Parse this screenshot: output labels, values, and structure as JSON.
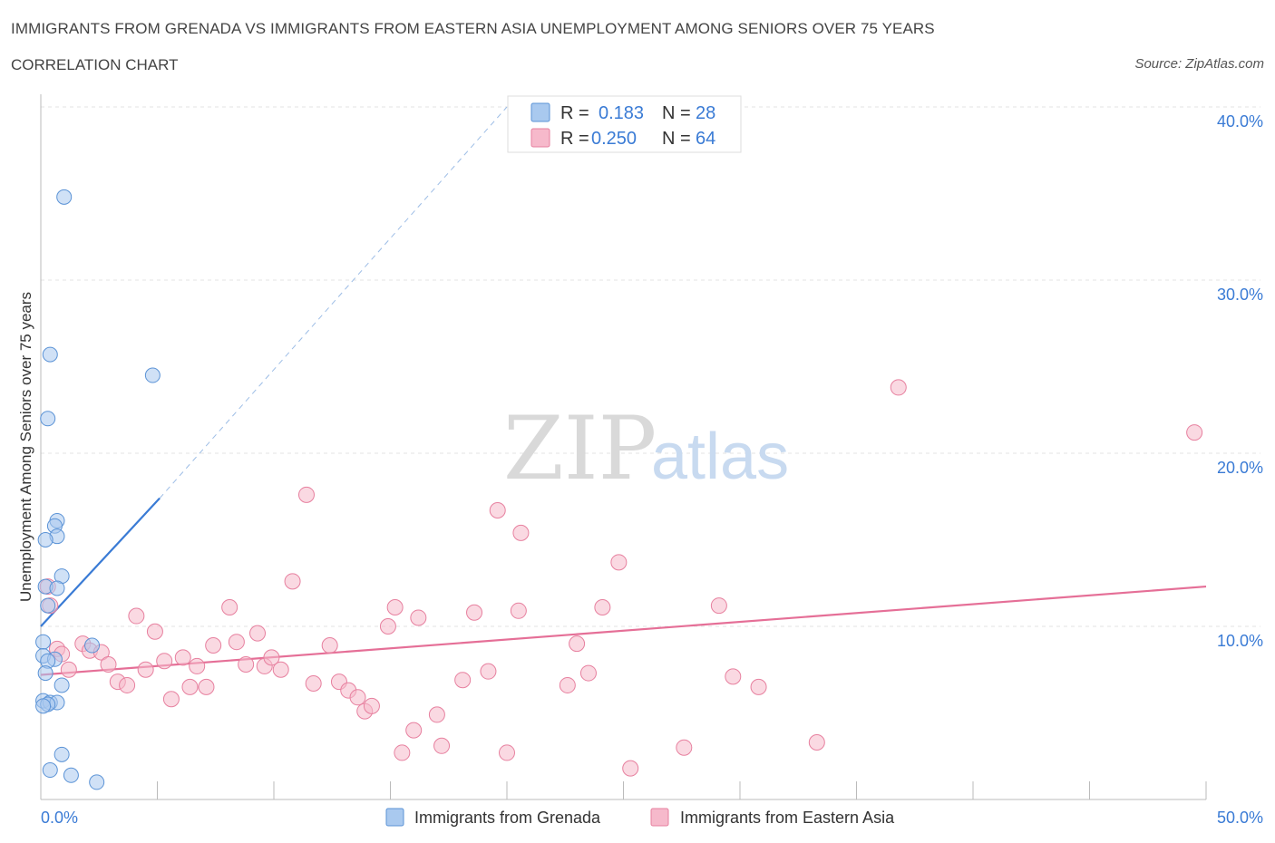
{
  "header": {
    "title": "IMMIGRANTS FROM GRENADA VS IMMIGRANTS FROM EASTERN ASIA UNEMPLOYMENT AMONG SENIORS OVER 75 YEARS",
    "subtitle": "CORRELATION CHART",
    "source": "Source: ZipAtlas.com"
  },
  "watermark": {
    "zip": "ZIP",
    "atlas": "atlas"
  },
  "colors": {
    "grenada_fill": "#a9c9ef",
    "grenada_stroke": "#5b93d6",
    "grenada_line": "#3a7bd5",
    "eastasia_fill": "#f6b9cb",
    "eastasia_stroke": "#e7809f",
    "eastasia_line": "#e56f97",
    "axis_label": "#3a7bd5"
  },
  "legend": {
    "r_label": "R =",
    "n_label": "N =",
    "grenada": {
      "r": "0.183",
      "n": "28",
      "name": "Immigrants from Grenada"
    },
    "eastasia": {
      "r": "0.250",
      "n": "64",
      "name": "Immigrants from Eastern Asia"
    }
  },
  "chart_data": {
    "type": "scatter",
    "xlabel": "",
    "ylabel": "Unemployment Among Seniors over 75 years",
    "xlim": [
      0,
      50
    ],
    "ylim": [
      0,
      40
    ],
    "x_tick_labels": {
      "min": "0.0%",
      "max": "50.0%"
    },
    "y_ticks": [
      10,
      20,
      30,
      40
    ],
    "y_tick_labels": [
      "10.0%",
      "20.0%",
      "30.0%",
      "40.0%"
    ],
    "grid": true,
    "legend_position": "top-center",
    "series": [
      {
        "name": "Immigrants from Grenada",
        "points": [
          [
            1.0,
            34.8
          ],
          [
            0.4,
            25.7
          ],
          [
            4.8,
            24.5
          ],
          [
            0.3,
            22.0
          ],
          [
            0.7,
            16.1
          ],
          [
            0.6,
            15.8
          ],
          [
            0.7,
            15.2
          ],
          [
            0.2,
            15.0
          ],
          [
            0.9,
            12.9
          ],
          [
            0.2,
            12.3
          ],
          [
            0.7,
            12.2
          ],
          [
            0.3,
            11.2
          ],
          [
            0.1,
            9.1
          ],
          [
            2.2,
            8.9
          ],
          [
            0.1,
            8.3
          ],
          [
            0.6,
            8.1
          ],
          [
            0.3,
            8.0
          ],
          [
            0.2,
            7.3
          ],
          [
            0.9,
            6.6
          ],
          [
            0.1,
            5.7
          ],
          [
            0.4,
            5.6
          ],
          [
            0.7,
            5.6
          ],
          [
            0.3,
            5.5
          ],
          [
            0.1,
            5.4
          ],
          [
            0.9,
            2.6
          ],
          [
            0.4,
            1.7
          ],
          [
            1.3,
            1.4
          ],
          [
            2.4,
            1.0
          ]
        ],
        "trend": {
          "x": [
            0,
            5.1
          ],
          "y": [
            10.0,
            17.4
          ],
          "dashed_x": [
            5.1,
            20.0
          ],
          "dashed_y": [
            17.4,
            40.0
          ]
        }
      },
      {
        "name": "Immigrants from Eastern Asia",
        "points": [
          [
            0.3,
            12.3
          ],
          [
            0.4,
            11.2
          ],
          [
            0.7,
            8.7
          ],
          [
            0.9,
            8.4
          ],
          [
            1.2,
            7.5
          ],
          [
            1.8,
            9.0
          ],
          [
            2.1,
            8.6
          ],
          [
            2.6,
            8.5
          ],
          [
            2.9,
            7.8
          ],
          [
            3.3,
            6.8
          ],
          [
            3.7,
            6.6
          ],
          [
            4.1,
            10.6
          ],
          [
            4.5,
            7.5
          ],
          [
            4.9,
            9.7
          ],
          [
            5.3,
            8.0
          ],
          [
            5.6,
            5.8
          ],
          [
            6.1,
            8.2
          ],
          [
            6.4,
            6.5
          ],
          [
            6.7,
            7.7
          ],
          [
            7.1,
            6.5
          ],
          [
            7.4,
            8.9
          ],
          [
            8.1,
            11.1
          ],
          [
            8.4,
            9.1
          ],
          [
            8.8,
            7.8
          ],
          [
            9.3,
            9.6
          ],
          [
            9.6,
            7.7
          ],
          [
            9.9,
            8.2
          ],
          [
            10.3,
            7.5
          ],
          [
            10.8,
            12.6
          ],
          [
            11.4,
            17.6
          ],
          [
            11.7,
            6.7
          ],
          [
            12.4,
            8.9
          ],
          [
            12.8,
            6.8
          ],
          [
            13.2,
            6.3
          ],
          [
            13.6,
            5.9
          ],
          [
            13.9,
            5.1
          ],
          [
            14.2,
            5.4
          ],
          [
            14.9,
            10.0
          ],
          [
            15.2,
            11.1
          ],
          [
            15.5,
            2.7
          ],
          [
            16.0,
            4.0
          ],
          [
            16.2,
            10.5
          ],
          [
            17.0,
            4.9
          ],
          [
            17.2,
            3.1
          ],
          [
            18.1,
            6.9
          ],
          [
            18.6,
            10.8
          ],
          [
            19.2,
            7.4
          ],
          [
            19.6,
            16.7
          ],
          [
            20.0,
            2.7
          ],
          [
            20.5,
            10.9
          ],
          [
            20.6,
            15.4
          ],
          [
            22.6,
            6.6
          ],
          [
            23.0,
            9.0
          ],
          [
            23.5,
            7.3
          ],
          [
            24.1,
            11.1
          ],
          [
            24.8,
            13.7
          ],
          [
            25.3,
            1.8
          ],
          [
            27.6,
            3.0
          ],
          [
            29.1,
            11.2
          ],
          [
            29.7,
            7.1
          ],
          [
            30.8,
            6.5
          ],
          [
            33.3,
            3.3
          ],
          [
            36.8,
            23.8
          ],
          [
            49.5,
            21.2
          ]
        ],
        "trend": {
          "x": [
            0,
            50
          ],
          "y": [
            7.2,
            12.3
          ]
        }
      }
    ]
  }
}
